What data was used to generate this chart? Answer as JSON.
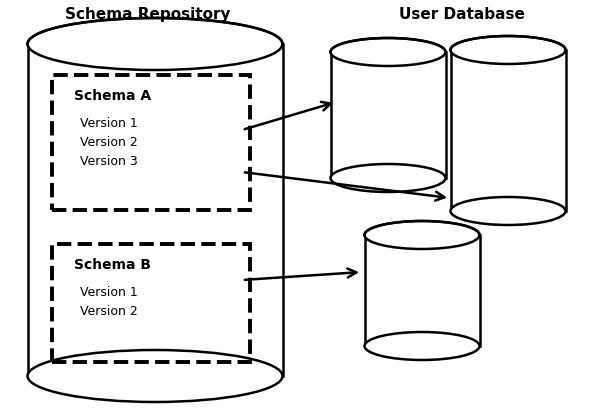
{
  "title_left": "Schema Repository",
  "title_right": "User Database",
  "schema_a_label": "Schema A",
  "schema_b_label": "Schema B",
  "versions_a": [
    "Version 1",
    "Version 2",
    "Version 3"
  ],
  "versions_b": [
    "Version 1",
    "Version 2"
  ],
  "bg_color": "#ffffff",
  "line_color": "#000000",
  "text_color": "#000000",
  "fig_width": 6.0,
  "fig_height": 4.2,
  "dpi": 100
}
